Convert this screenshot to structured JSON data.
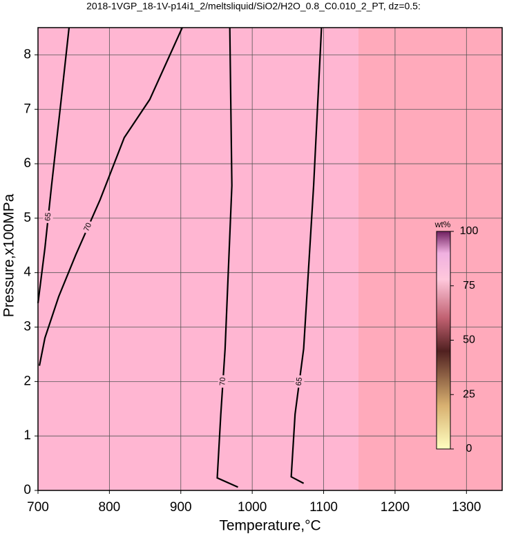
{
  "chart_data": {
    "type": "contour",
    "title": "2018-1VGP_18-1V-p14i1_2/meltsliquid/SiO2/H2O_0.8_C0.010_2_PT, dz=0.5:",
    "x_label": "Temperature,°C",
    "y_label": "Pressure,x100MPa",
    "xlim": [
      700,
      1350
    ],
    "ylim": [
      0,
      8.5
    ],
    "xticks": [
      700,
      800,
      900,
      1000,
      1100,
      1200,
      1300
    ],
    "yticks": [
      0,
      1,
      2,
      3,
      4,
      5,
      6,
      7,
      8
    ],
    "grid": true,
    "contours": [
      {
        "level": 70,
        "x": [
          902,
          856.5,
          820.8,
          787,
          753,
          729,
          709.7,
          702
        ],
        "y": [
          8.5,
          7.18,
          6.48,
          5.34,
          4.33,
          3.56,
          2.8,
          2.29
        ]
      },
      {
        "level": 65,
        "x": [
          743.5,
          732,
          719,
          709.7,
          700
        ],
        "y": [
          8.5,
          7.12,
          5.6,
          4.45,
          3.44
        ]
      },
      {
        "level": 70,
        "x": [
          968.6,
          971.5,
          962,
          956,
          951,
          980
        ],
        "y": [
          8.5,
          5.6,
          2.6,
          1.4,
          0.23,
          0.06
        ]
      },
      {
        "level": 65,
        "x": [
          1097,
          1086,
          1072,
          1060,
          1054.6,
          1072
        ],
        "y": [
          8.5,
          5.6,
          2.6,
          1.4,
          0.25,
          0.13
        ]
      }
    ],
    "colorbar": {
      "title": "wt%",
      "lim": [
        0,
        100
      ],
      "ticks": [
        0,
        25,
        50,
        75,
        100
      ]
    }
  }
}
